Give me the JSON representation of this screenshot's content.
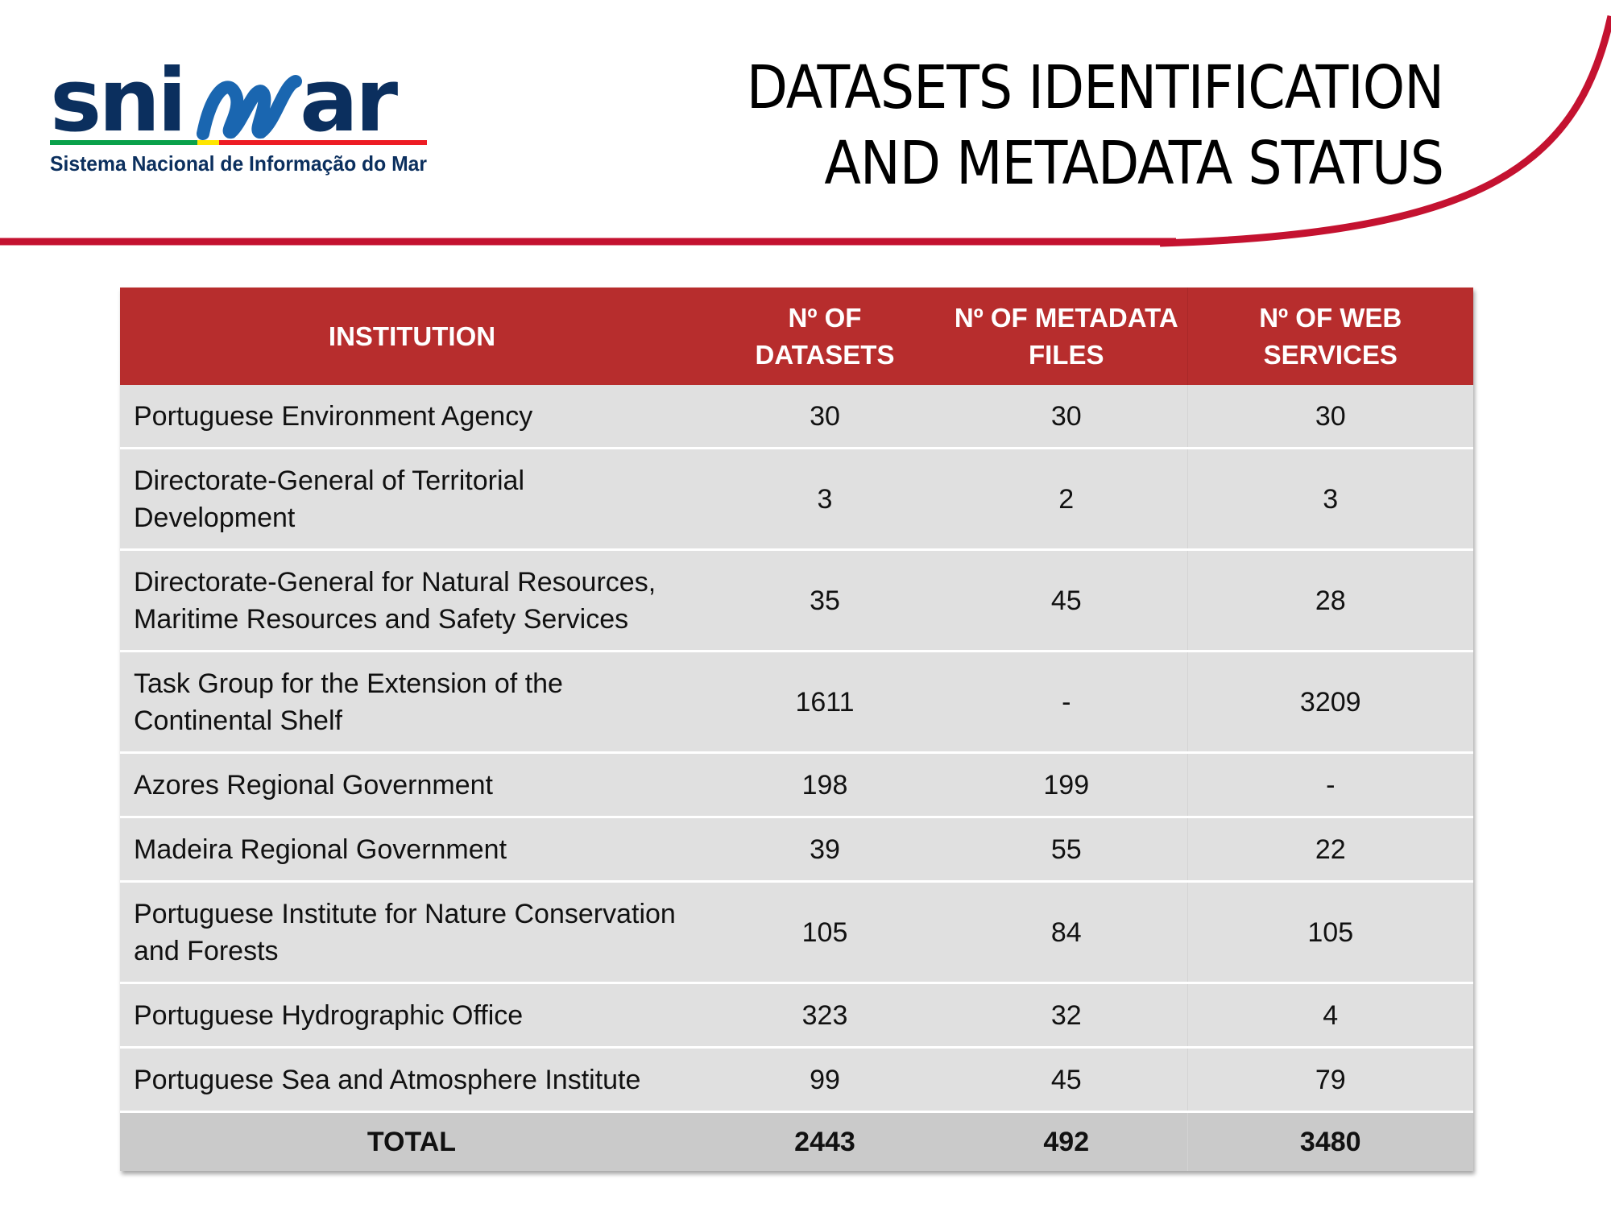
{
  "logo": {
    "text": "snimar",
    "tagline": "Sistema Nacional de Informação do Mar"
  },
  "title": {
    "line1": "DATASETS IDENTIFICATION",
    "line2": "AND METADATA STATUS"
  },
  "colors": {
    "accent": "#c41230",
    "header_bg": "#b72d2d",
    "row_bg": "#e0e0e0",
    "total_bg": "#cacaca",
    "logo_navy": "#0b2f5e",
    "logo_blue": "#1a66b0"
  },
  "table": {
    "headers": {
      "institution": "INSTITUTION",
      "datasets": [
        "Nº OF",
        "DATASETS"
      ],
      "metadata": [
        "Nº OF METADATA",
        "FILES"
      ],
      "web": [
        "Nº OF WEB",
        "SERVICES"
      ]
    },
    "rows": [
      {
        "institution": [
          "Portuguese Environment Agency"
        ],
        "datasets": "30",
        "metadata": "30",
        "web": "30"
      },
      {
        "institution": [
          "Directorate-General of Territorial",
          "Development"
        ],
        "datasets": "3",
        "metadata": "2",
        "web": "3"
      },
      {
        "institution": [
          "Directorate-General for Natural Resources,",
          "Maritime Resources and Safety Services"
        ],
        "datasets": "35",
        "metadata": "45",
        "web": "28"
      },
      {
        "institution": [
          "Task Group for the Extension of the",
          "Continental Shelf"
        ],
        "datasets": "1611",
        "metadata": "-",
        "web": "3209"
      },
      {
        "institution": [
          "Azores Regional Government"
        ],
        "datasets": "198",
        "metadata": "199",
        "web": "-"
      },
      {
        "institution": [
          "Madeira Regional Government"
        ],
        "datasets": "39",
        "metadata": "55",
        "web": "22"
      },
      {
        "institution": [
          "Portuguese Institute for Nature Conservation",
          "and Forests"
        ],
        "datasets": "105",
        "metadata": "84",
        "web": "105"
      },
      {
        "institution": [
          "Portuguese Hydrographic Office"
        ],
        "datasets": "323",
        "metadata": "32",
        "web": "4"
      },
      {
        "institution": [
          "Portuguese Sea and Atmosphere Institute"
        ],
        "datasets": "99",
        "metadata": "45",
        "web": "79"
      }
    ],
    "total": {
      "label": "TOTAL",
      "datasets": "2443",
      "metadata": "492",
      "web": "3480"
    }
  }
}
